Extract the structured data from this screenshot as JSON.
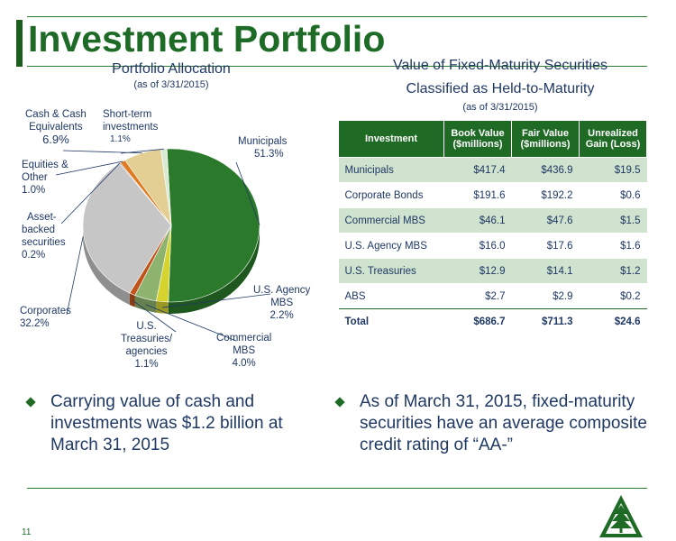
{
  "slide": {
    "title": "Investment Portfolio",
    "page_number": "11"
  },
  "pie": {
    "heading": "Portfolio Allocation",
    "subheading": "(as of  3/31/2015)"
  },
  "table": {
    "heading_line1": "Value of Fixed-Maturity Securities",
    "heading_line2": "Classified as Held-to-Maturity",
    "subheading": "(as of  3/31/2015)",
    "columns": [
      "Investment",
      "Book Value ($millions)",
      "Fair Value ($millions)",
      "Unrealized Gain (Loss)"
    ],
    "rows": [
      [
        "Municipals",
        "$417.4",
        "$436.9",
        "$19.5"
      ],
      [
        "Corporate Bonds",
        "$191.6",
        "$192.2",
        "$0.6"
      ],
      [
        "Commercial MBS",
        "$46.1",
        "$47.6",
        "$1.5"
      ],
      [
        "U.S. Agency MBS",
        "$16.0",
        "$17.6",
        "$1.6"
      ],
      [
        "U.S. Treasuries",
        "$12.9",
        "$14.1",
        "$1.2"
      ],
      [
        "ABS",
        "$2.7",
        "$2.9",
        "$0.2"
      ]
    ],
    "total": [
      "Total",
      "$686.7",
      "$711.3",
      "$24.6"
    ]
  },
  "bullets": {
    "left": "Carrying value of cash and investments was $1.2 billion at March 31, 2015",
    "right": "As of March 31, 2015, fixed-maturity securities have an average composite credit rating of “AA-”"
  },
  "chart_data": {
    "type": "pie",
    "title": "Portfolio Allocation",
    "subtitle": "(as of  3/31/2015)",
    "slices": [
      {
        "label": "Municipals",
        "label_lines": [
          "Municipals"
        ],
        "pct_text": "51.3%",
        "value": 51.3,
        "color": "#2b7a2b"
      },
      {
        "label": "U.S. Agency MBS",
        "label_lines": [
          "U.S. Agency",
          "MBS"
        ],
        "pct_text": "2.2%",
        "value": 2.2,
        "color": "#d6d32f"
      },
      {
        "label": "Commercial MBS",
        "label_lines": [
          "Commercial",
          "MBS"
        ],
        "pct_text": "4.0%",
        "value": 4.0,
        "color": "#8db36e"
      },
      {
        "label": "U.S. Treasuries/ agencies",
        "label_lines": [
          "U.S.",
          "Treasuries/",
          "agencies"
        ],
        "pct_text": "1.1%",
        "value": 1.1,
        "color": "#c0531a"
      },
      {
        "label": "Corporates",
        "label_lines": [
          "Corporates"
        ],
        "pct_text": "32.2%",
        "value": 32.2,
        "color": "#c6c6c6"
      },
      {
        "label": "Asset-backed securities",
        "label_lines": [
          "Asset-",
          "backed",
          "securities"
        ],
        "pct_text": "0.2%",
        "value": 0.2,
        "color": "#7f7f7f"
      },
      {
        "label": "Equities & Other",
        "label_lines": [
          "Equities &",
          "Other"
        ],
        "pct_text": "1.0%",
        "value": 1.0,
        "color": "#e07b22"
      },
      {
        "label": "Cash & Cash Equivalents",
        "label_lines": [
          "Cash & Cash",
          "Equivalents"
        ],
        "pct_text": "6.9%",
        "value": 6.9,
        "color": "#e3cf93"
      },
      {
        "label": "Short-term investments",
        "label_lines": [
          "Short-term",
          "investments"
        ],
        "pct_text": "1.1%",
        "value": 1.1,
        "color": "#d9ead3"
      }
    ]
  }
}
